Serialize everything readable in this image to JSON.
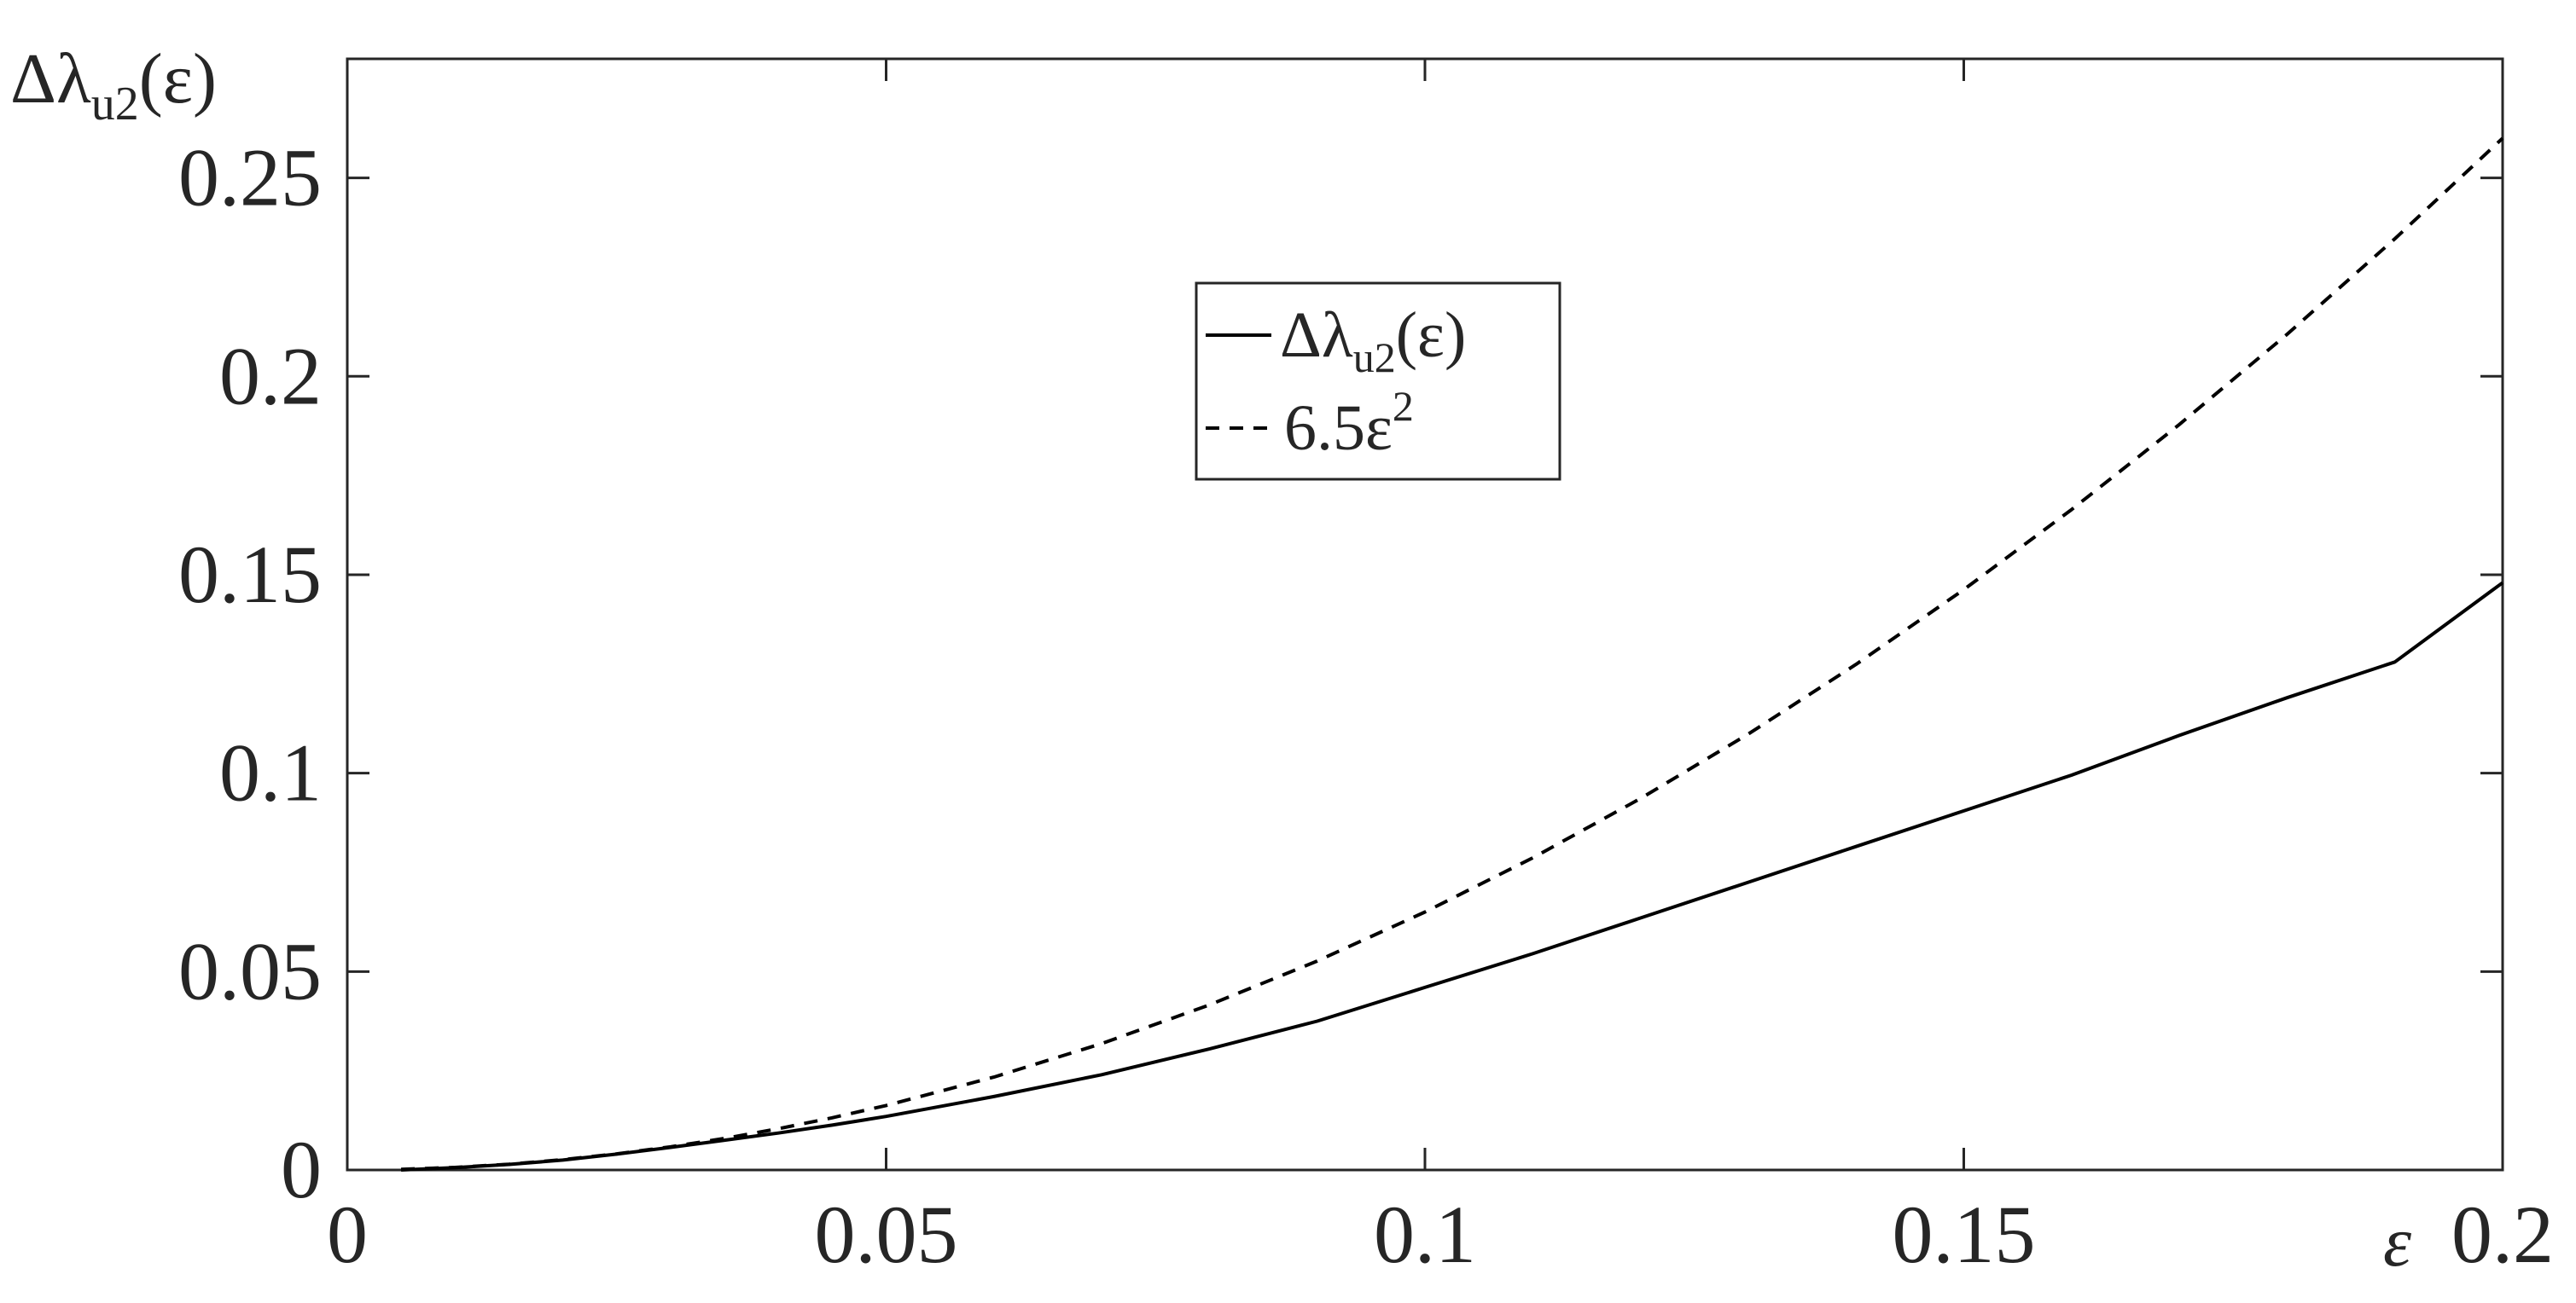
{
  "chart_data": {
    "type": "line",
    "xlabel": "ε",
    "ylabel": {
      "base": "Δλ",
      "sub": "u2",
      "arg": "(ε)"
    },
    "xlim": [
      0,
      0.2
    ],
    "ylim": [
      0,
      0.28
    ],
    "xticks": [
      {
        "value": 0,
        "label": "0"
      },
      {
        "value": 0.05,
        "label": "0.05"
      },
      {
        "value": 0.1,
        "label": "0.1"
      },
      {
        "value": 0.15,
        "label": "0.15"
      },
      {
        "value": 0.2,
        "label": "0.2"
      }
    ],
    "yticks": [
      {
        "value": 0,
        "label": "0"
      },
      {
        "value": 0.05,
        "label": "0.05"
      },
      {
        "value": 0.1,
        "label": "0.1"
      },
      {
        "value": 0.15,
        "label": "0.15"
      },
      {
        "value": 0.2,
        "label": "0.2"
      },
      {
        "value": 0.25,
        "label": "0.25"
      }
    ],
    "grid": false,
    "legend_position": "top-center",
    "series": [
      {
        "name": "Δλu2(ε)",
        "legend_parts": {
          "base": "Δλ",
          "sub": "u2",
          "arg": "(ε)"
        },
        "style": "solid",
        "color": "#000000",
        "x": [
          0.005,
          0.01,
          0.015,
          0.02,
          0.025,
          0.03,
          0.035,
          0.04,
          0.045,
          0.05,
          0.06,
          0.07,
          0.08,
          0.09,
          0.1,
          0.11,
          0.12,
          0.13,
          0.14,
          0.15,
          0.16,
          0.17,
          0.18,
          0.19,
          0.2
        ],
        "y": [
          0.0,
          0.0006,
          0.0014,
          0.0025,
          0.004,
          0.0057,
          0.0075,
          0.0093,
          0.0113,
          0.0135,
          0.0185,
          0.024,
          0.0305,
          0.0375,
          0.046,
          0.0545,
          0.0635,
          0.0725,
          0.0815,
          0.0905,
          0.0995,
          0.1095,
          0.119,
          0.128,
          0.148
        ]
      },
      {
        "name": "6.5ε²",
        "legend_parts": {
          "base": "6.5ε",
          "sup": "2"
        },
        "style": "dashed",
        "color": "#000000",
        "x": [
          0.005,
          0.01,
          0.015,
          0.02,
          0.025,
          0.03,
          0.035,
          0.04,
          0.045,
          0.05,
          0.06,
          0.07,
          0.08,
          0.09,
          0.1,
          0.11,
          0.12,
          0.13,
          0.14,
          0.15,
          0.16,
          0.17,
          0.18,
          0.19,
          0.2
        ],
        "y": [
          0.000163,
          0.00065,
          0.00146,
          0.0026,
          0.00406,
          0.00585,
          0.00796,
          0.0104,
          0.01316,
          0.01625,
          0.0234,
          0.03185,
          0.0416,
          0.05265,
          0.065,
          0.07865,
          0.0936,
          0.10985,
          0.1274,
          0.14625,
          0.1664,
          0.18785,
          0.2106,
          0.23465,
          0.26
        ]
      }
    ]
  }
}
